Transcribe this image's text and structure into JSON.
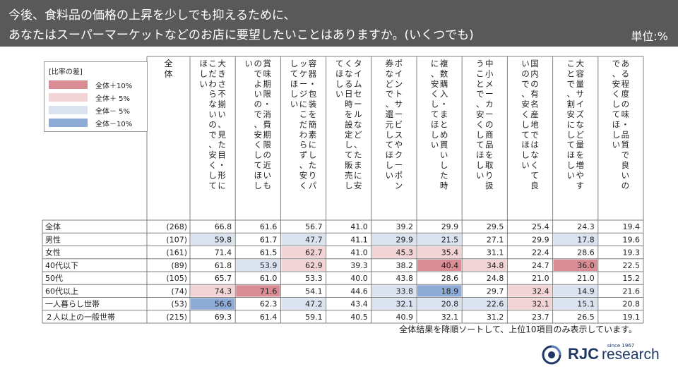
{
  "header": {
    "question_line1": "今後、食料品の価格の上昇を少しでも抑えるために、",
    "question_line2": "あなたはスーパーマーケットなどのお店に要望したいことはありますか。(いくつでも)",
    "unit": "単位:%"
  },
  "legend": {
    "title": "[比率の差]",
    "items": [
      {
        "label": "全体＋10%",
        "color": "#d98c94"
      },
      {
        "label": "全体＋ 5%",
        "color": "#f2d3d6"
      },
      {
        "label": "全体－ 5%",
        "color": "#dbe3f0"
      },
      {
        "label": "全体－10%",
        "color": "#8eaad6"
      }
    ]
  },
  "colors": {
    "grid": "#7f7f7f",
    "text": "#222222",
    "navy": "#1f3864"
  },
  "chart_data": {
    "type": "table",
    "n_header": "全体",
    "columns": [
      "大きさ不揃い、見た目・形にこだわらないので、安くしてほしい",
      "賞味期限・消費期限の近いものでよいので、安くしてほしい",
      "容器・包装を簡素にしたりパッケージにこだわらず、安くしてほしい",
      "タイムセールなど、たまに安くなる日時を設定して販売してほしい",
      "ポイントサービスやクーポン券などで、還元してほしい",
      "複数購入・まとめ買いした時に、安くしてほしい",
      "中小メーカーの商品を取り扱うことで、安くしてほしい",
      "国内の有名産地ではなくて良いので、安くしてほしい",
      "大容量サイズなど量を増やすことで、割安にしてほしい",
      "ある程度の味・品質で良いので、安くしてほしい"
    ],
    "rows": [
      {
        "label": "全体",
        "n": "(268)",
        "values": [
          "66.8",
          "61.6",
          "56.7",
          "41.0",
          "39.2",
          "29.9",
          "29.5",
          "25.4",
          "24.3",
          "19.4"
        ],
        "shade": [
          0,
          0,
          0,
          0,
          0,
          0,
          0,
          0,
          0,
          0
        ]
      },
      {
        "label": "男性",
        "n": "(107)",
        "values": [
          "59.8",
          "61.7",
          "47.7",
          "41.1",
          "29.9",
          "21.5",
          "27.1",
          "29.9",
          "17.8",
          "19.6"
        ],
        "shade": [
          -1,
          0,
          -1,
          0,
          -1,
          -1,
          0,
          0,
          -1,
          0
        ]
      },
      {
        "label": "女性",
        "n": "(161)",
        "values": [
          "71.4",
          "61.5",
          "62.7",
          "41.0",
          "45.3",
          "35.4",
          "31.1",
          "22.4",
          "28.6",
          "19.3"
        ],
        "shade": [
          0,
          0,
          1,
          0,
          1,
          1,
          0,
          0,
          0,
          0
        ]
      },
      {
        "label": "40代以下",
        "n": "(89)",
        "values": [
          "61.8",
          "53.9",
          "62.9",
          "39.3",
          "38.2",
          "40.4",
          "34.8",
          "24.7",
          "36.0",
          "22.5"
        ],
        "shade": [
          0,
          -1,
          1,
          0,
          0,
          2,
          1,
          0,
          2,
          0
        ]
      },
      {
        "label": "50代",
        "n": "(105)",
        "values": [
          "65.7",
          "61.0",
          "53.3",
          "40.0",
          "43.8",
          "28.6",
          "24.8",
          "21.0",
          "21.0",
          "15.2"
        ],
        "shade": [
          0,
          0,
          0,
          0,
          0,
          0,
          0,
          0,
          0,
          0
        ]
      },
      {
        "label": "60代以上",
        "n": "(74)",
        "values": [
          "74.3",
          "71.6",
          "54.1",
          "44.6",
          "33.8",
          "18.9",
          "29.7",
          "32.4",
          "14.9",
          "21.6"
        ],
        "shade": [
          1,
          2,
          0,
          0,
          -1,
          -2,
          0,
          1,
          -1,
          0
        ]
      },
      {
        "label": "一人暮らし世帯",
        "n": "(53)",
        "values": [
          "56.6",
          "62.3",
          "47.2",
          "43.4",
          "32.1",
          "20.8",
          "22.6",
          "32.1",
          "15.1",
          "20.8"
        ],
        "shade": [
          -2,
          0,
          -1,
          0,
          -1,
          -1,
          -1,
          1,
          -1,
          0
        ]
      },
      {
        "label": "２人以上の一般世帯",
        "n": "(215)",
        "values": [
          "69.3",
          "61.4",
          "59.1",
          "40.5",
          "40.9",
          "32.1",
          "31.2",
          "23.7",
          "26.5",
          "19.1"
        ],
        "shade": [
          0,
          0,
          0,
          0,
          0,
          0,
          0,
          0,
          0,
          0
        ]
      }
    ]
  },
  "footer": {
    "note": "全体結果を降順ソートして、上位10項目のみ表示しています。",
    "logo_text": "RJC",
    "logo_sub": "research",
    "logo_since": "since 1967"
  }
}
